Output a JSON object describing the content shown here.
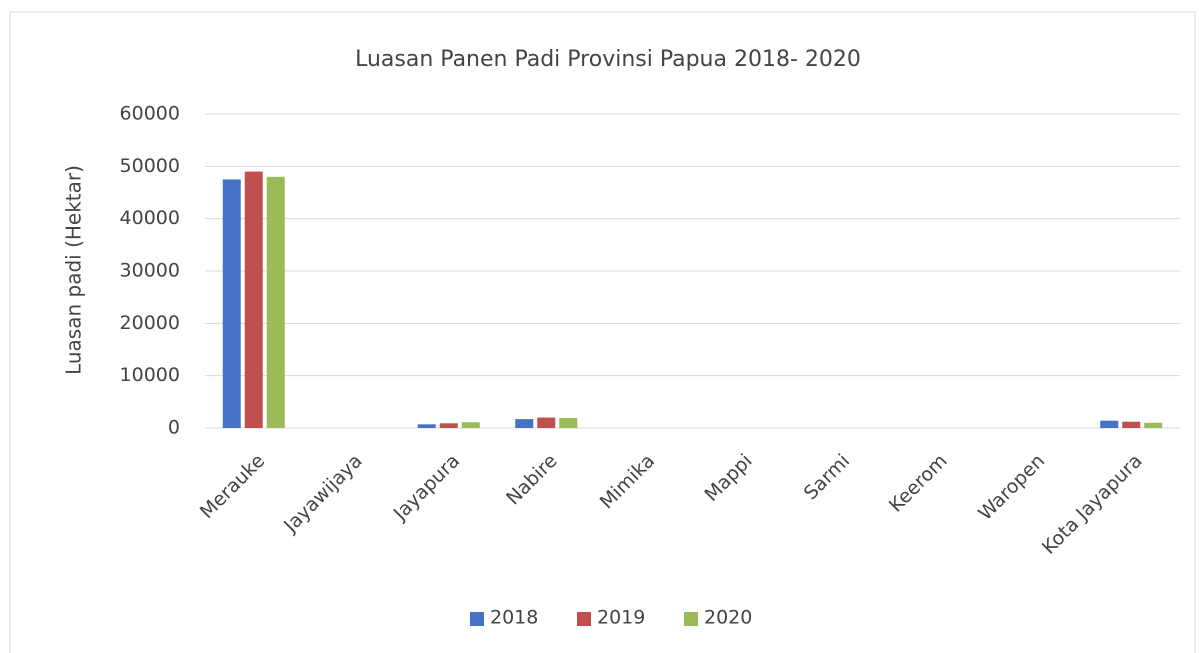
{
  "chart_data": {
    "type": "bar",
    "title": "Luasan Panen Padi Provinsi Papua 2018- 2020",
    "y_label": "Luasan padi (Hektar)",
    "categories": [
      "Merauke",
      "Jayawijaya",
      "Jayapura",
      "Nabire",
      "Mimika",
      "Mappi",
      "Sarmi",
      "Keerom",
      "Waropen",
      "Kota Jayapura"
    ],
    "series": [
      {
        "name": "2018",
        "color": "#4472c4",
        "values": [
          47500,
          0,
          700,
          1700,
          0,
          0,
          0,
          0,
          0,
          1400
        ]
      },
      {
        "name": "2019",
        "color": "#c0504d",
        "values": [
          49000,
          0,
          900,
          2000,
          0,
          0,
          0,
          0,
          0,
          1200
        ]
      },
      {
        "name": "2020",
        "color": "#9bbb59",
        "values": [
          48000,
          0,
          1100,
          1900,
          0,
          0,
          0,
          0,
          0,
          1000
        ]
      }
    ],
    "ylim": [
      0,
      60000
    ],
    "yticks": [
      0,
      10000,
      20000,
      30000,
      40000,
      50000,
      60000
    ],
    "grid": true,
    "legend": "bottom"
  }
}
